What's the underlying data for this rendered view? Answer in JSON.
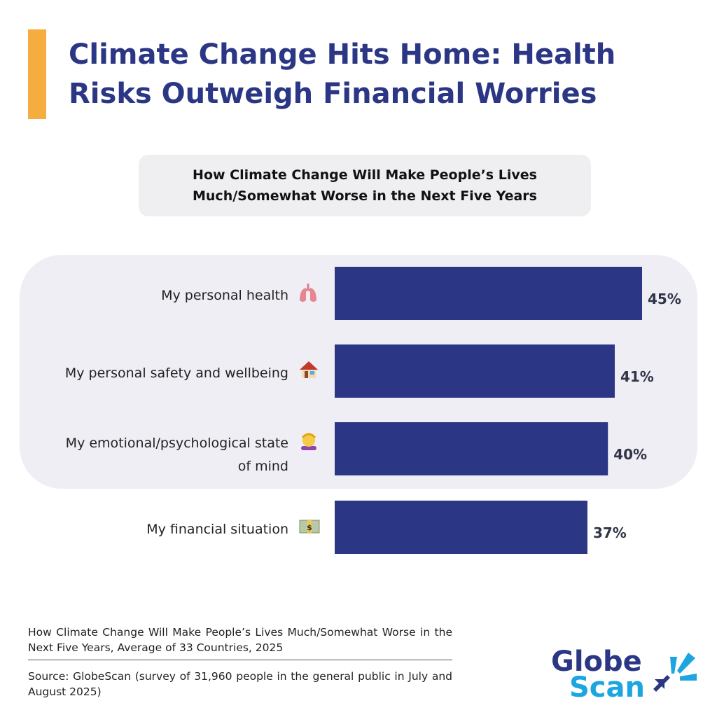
{
  "title": "Climate Change Hits Home: Health Risks Outweigh Financial Worries",
  "colors": {
    "accent": "#f5ad3f",
    "bar": "#2b3784",
    "highlight": "#efeef5",
    "logo_dark": "#2b3784",
    "logo_light": "#1ba6df"
  },
  "chart_data": {
    "type": "bar",
    "orientation": "horizontal",
    "title": "How Climate Change Will Make People’s Lives Much/Somewhat Worse in the Next Five Years",
    "categories": [
      "My personal health",
      "My personal safety and wellbeing",
      "My emotional/psychological state of mind",
      "My financial situation"
    ],
    "category_lines": [
      [
        "My personal health"
      ],
      [
        "My personal safety and wellbeing"
      ],
      [
        "My emotional/psychological state",
        "of mind"
      ],
      [
        "My financial situation"
      ]
    ],
    "icons": [
      "lungs-icon",
      "house-icon",
      "person-massage-icon",
      "banknote-icon"
    ],
    "values": [
      45,
      41,
      40,
      37
    ],
    "value_labels": [
      "45%",
      "41%",
      "40%",
      "37%"
    ],
    "unit": "%",
    "highlighted_categories": [
      "My personal health",
      "My personal safety and wellbeing",
      "My emotional/psychological state of mind"
    ],
    "grid": false
  },
  "caption": "How Climate Change Will Make People’s Lives Much/Somewhat Worse in the Next Five Years, Average of 33 Countries, 2025",
  "source": "Source: GlobeScan (survey of 31,960 people in the general public in July and August 2025)",
  "logo": {
    "line1": "Globe",
    "line2": "Scan"
  }
}
